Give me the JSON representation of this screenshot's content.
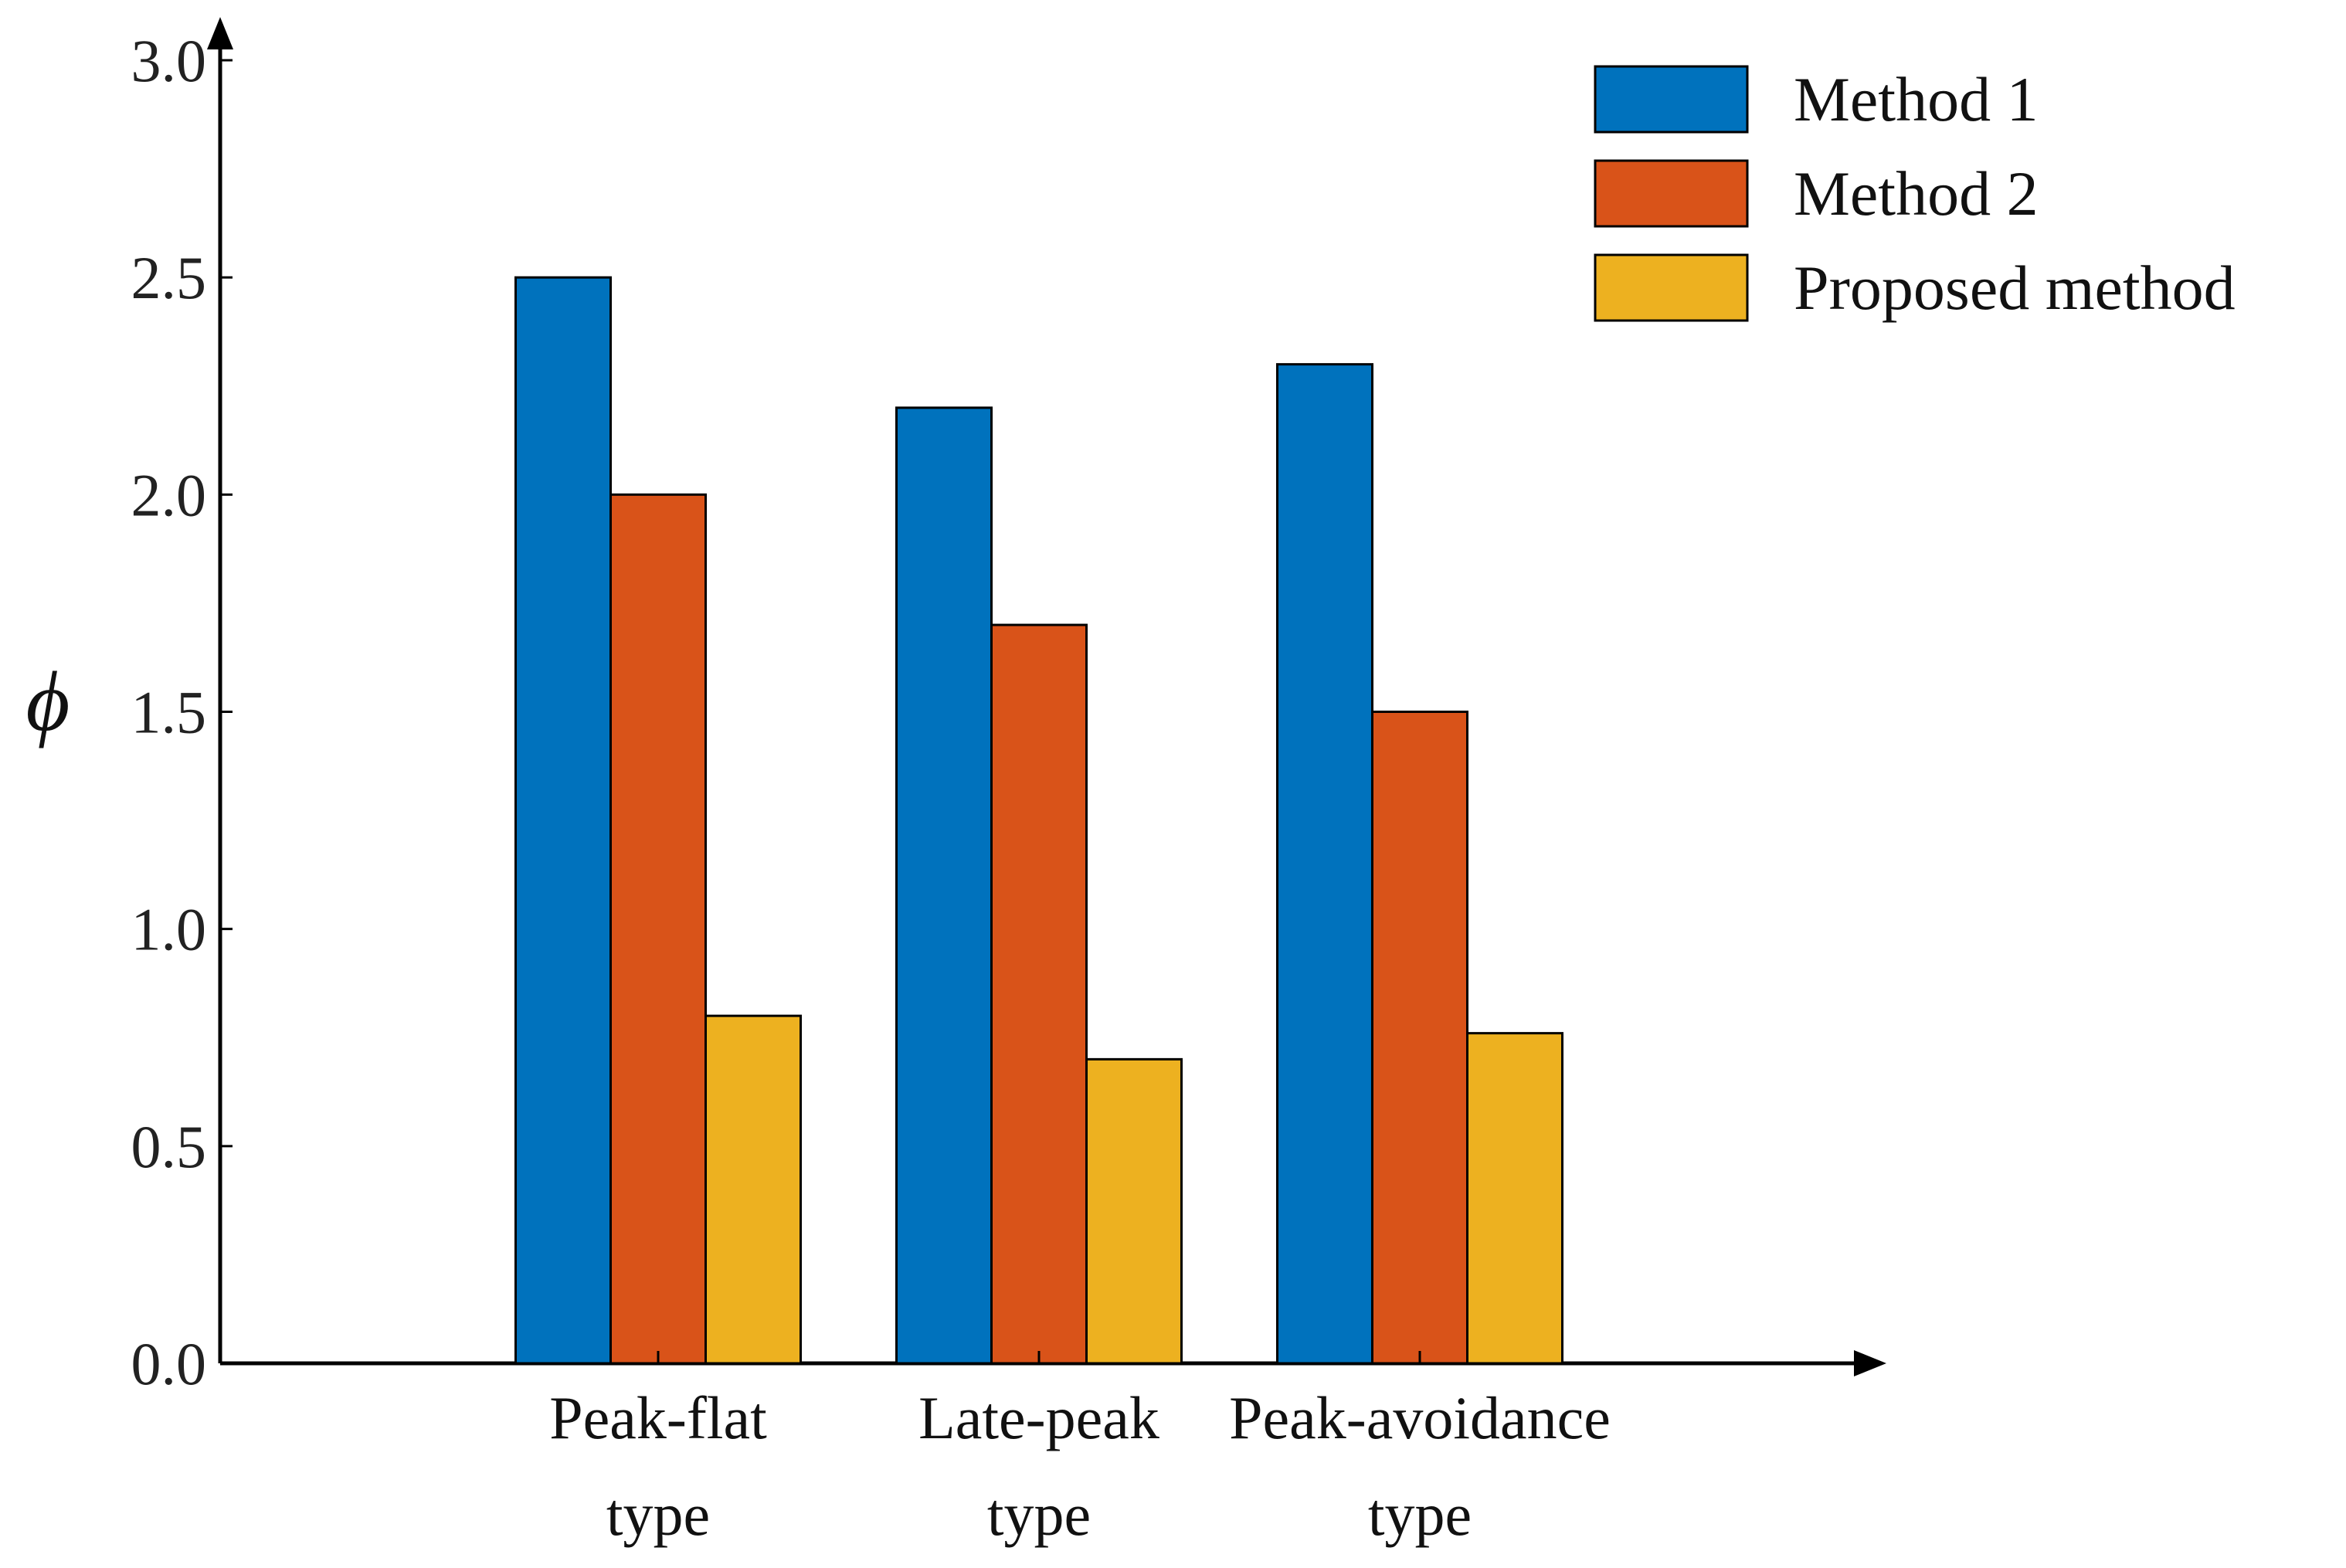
{
  "chart_data": {
    "type": "bar",
    "title": "",
    "xlabel": "",
    "ylabel": "ϕ",
    "ylim": [
      0,
      3.0
    ],
    "yticks": [
      "0.0",
      "0.5",
      "1.0",
      "1.5",
      "2.0",
      "2.5",
      "3.0"
    ],
    "categories": [
      [
        "Peak-flat",
        "type"
      ],
      [
        "Late-peak",
        "type"
      ],
      [
        "Peak-avoidance",
        "type"
      ]
    ],
    "series": [
      {
        "name": "Method 1",
        "color": "#0072BD",
        "values": [
          2.5,
          2.2,
          2.3
        ]
      },
      {
        "name": "Method 2",
        "color": "#D95319",
        "values": [
          2.0,
          1.7,
          1.5
        ]
      },
      {
        "name": "Proposed method",
        "color": "#EDB120",
        "values": [
          0.8,
          0.7,
          0.76
        ]
      }
    ],
    "legend_position": "top-right",
    "grid": false
  }
}
